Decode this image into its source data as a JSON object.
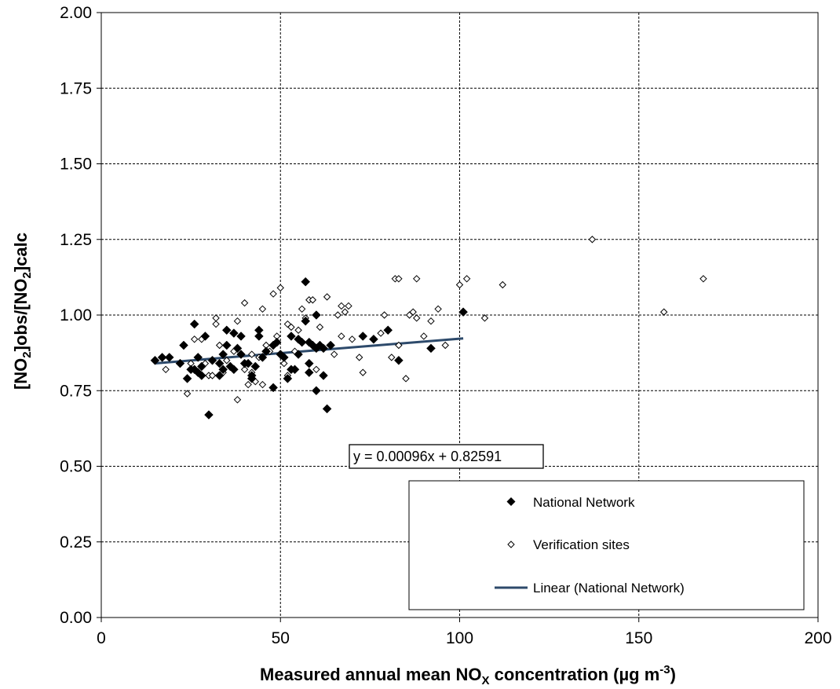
{
  "chart_data": {
    "type": "scatter",
    "xlabel": {
      "main": "Measured annual mean NO",
      "sub": "X",
      "rest": " concentration (µg m",
      "sup": "-3",
      "end": ")"
    },
    "ylabel": {
      "p1": "[NO",
      "s1": "2",
      "p2": "]obs/[NO",
      "s2": "2",
      "p3": "]calc"
    },
    "xlim": [
      0,
      200
    ],
    "ylim": [
      0,
      2.0
    ],
    "x_ticks": [
      "0",
      "50",
      "100",
      "150",
      "200"
    ],
    "y_ticks": [
      "0.00",
      "0.25",
      "0.50",
      "0.75",
      "1.00",
      "1.25",
      "1.50",
      "1.75",
      "2.00"
    ],
    "grid": true,
    "legend_position": "bottom-right",
    "legend": [
      "National Network",
      "Verification sites",
      "Linear (National Network)"
    ],
    "trendline": {
      "series": "National Network",
      "equation": "y = 0.00096x + 0.82591",
      "slope": 0.00096,
      "intercept": 0.82591,
      "x_range": [
        15,
        101
      ],
      "color": "#2d4a6b"
    },
    "series": [
      {
        "name": "National Network",
        "marker": "filled-diamond",
        "color": "#000000",
        "points": [
          [
            15,
            0.85
          ],
          [
            17,
            0.86
          ],
          [
            19,
            0.86
          ],
          [
            22,
            0.84
          ],
          [
            23,
            0.9
          ],
          [
            24,
            0.79
          ],
          [
            25,
            0.82
          ],
          [
            26,
            0.82
          ],
          [
            26,
            0.97
          ],
          [
            27,
            0.86
          ],
          [
            27,
            0.81
          ],
          [
            28,
            0.8
          ],
          [
            28,
            0.83
          ],
          [
            29,
            0.93
          ],
          [
            30,
            0.67
          ],
          [
            31,
            0.85
          ],
          [
            33,
            0.84
          ],
          [
            33,
            0.8
          ],
          [
            34,
            0.87
          ],
          [
            34,
            0.82
          ],
          [
            35,
            0.95
          ],
          [
            35,
            0.9
          ],
          [
            36,
            0.83
          ],
          [
            37,
            0.82
          ],
          [
            37,
            0.94
          ],
          [
            38,
            0.89
          ],
          [
            39,
            0.87
          ],
          [
            39,
            0.93
          ],
          [
            40,
            0.84
          ],
          [
            41,
            0.84
          ],
          [
            42,
            0.8
          ],
          [
            42,
            0.79
          ],
          [
            43,
            0.83
          ],
          [
            44,
            0.95
          ],
          [
            44,
            0.93
          ],
          [
            45,
            0.86
          ],
          [
            46,
            0.88
          ],
          [
            48,
            0.9
          ],
          [
            48,
            0.76
          ],
          [
            49,
            0.91
          ],
          [
            50,
            0.87
          ],
          [
            51,
            0.86
          ],
          [
            52,
            0.79
          ],
          [
            53,
            0.82
          ],
          [
            53,
            0.93
          ],
          [
            54,
            0.82
          ],
          [
            55,
            0.92
          ],
          [
            55,
            0.87
          ],
          [
            56,
            0.91
          ],
          [
            57,
            1.11
          ],
          [
            57,
            0.98
          ],
          [
            58,
            0.81
          ],
          [
            58,
            0.84
          ],
          [
            58,
            0.91
          ],
          [
            59,
            0.9
          ],
          [
            60,
            0.75
          ],
          [
            60,
            0.89
          ],
          [
            61,
            0.9
          ],
          [
            62,
            0.89
          ],
          [
            62,
            0.8
          ],
          [
            63,
            0.69
          ],
          [
            64,
            0.9
          ],
          [
            73,
            0.93
          ],
          [
            76,
            0.92
          ],
          [
            80,
            0.95
          ],
          [
            83,
            0.85
          ],
          [
            92,
            0.89
          ],
          [
            101,
            1.01
          ],
          [
            60,
            1.0
          ]
        ]
      },
      {
        "name": "Verification sites",
        "marker": "open-diamond",
        "color": "#000000",
        "points": [
          [
            18,
            0.82
          ],
          [
            24,
            0.74
          ],
          [
            25,
            0.84
          ],
          [
            26,
            0.92
          ],
          [
            27,
            0.86
          ],
          [
            28,
            0.92
          ],
          [
            29,
            0.84
          ],
          [
            30,
            0.8
          ],
          [
            31,
            0.8
          ],
          [
            32,
            0.99
          ],
          [
            32,
            0.97
          ],
          [
            33,
            0.9
          ],
          [
            34,
            0.81
          ],
          [
            35,
            0.85
          ],
          [
            36,
            0.83
          ],
          [
            37,
            0.88
          ],
          [
            38,
            0.72
          ],
          [
            38,
            0.98
          ],
          [
            39,
            0.87
          ],
          [
            40,
            1.04
          ],
          [
            40,
            0.82
          ],
          [
            41,
            0.77
          ],
          [
            42,
            0.87
          ],
          [
            42,
            0.81
          ],
          [
            43,
            0.78
          ],
          [
            44,
            0.86
          ],
          [
            45,
            0.77
          ],
          [
            45,
            1.02
          ],
          [
            46,
            0.9
          ],
          [
            47,
            0.88
          ],
          [
            48,
            1.07
          ],
          [
            49,
            0.93
          ],
          [
            50,
            1.09
          ],
          [
            51,
            0.84
          ],
          [
            52,
            0.97
          ],
          [
            52,
            0.8
          ],
          [
            53,
            0.96
          ],
          [
            54,
            0.88
          ],
          [
            55,
            0.95
          ],
          [
            56,
            1.02
          ],
          [
            57,
            0.99
          ],
          [
            58,
            1.05
          ],
          [
            59,
            1.05
          ],
          [
            60,
            0.82
          ],
          [
            61,
            0.96
          ],
          [
            63,
            1.06
          ],
          [
            65,
            0.87
          ],
          [
            66,
            1.0
          ],
          [
            67,
            1.03
          ],
          [
            67,
            0.93
          ],
          [
            68,
            1.01
          ],
          [
            69,
            1.03
          ],
          [
            70,
            0.92
          ],
          [
            72,
            0.86
          ],
          [
            73,
            0.81
          ],
          [
            78,
            0.94
          ],
          [
            79,
            1.0
          ],
          [
            81,
            0.86
          ],
          [
            82,
            1.12
          ],
          [
            83,
            1.12
          ],
          [
            83,
            0.9
          ],
          [
            85,
            0.79
          ],
          [
            86,
            1.0
          ],
          [
            87,
            1.01
          ],
          [
            88,
            1.12
          ],
          [
            88,
            0.99
          ],
          [
            90,
            0.93
          ],
          [
            92,
            0.98
          ],
          [
            94,
            1.02
          ],
          [
            96,
            0.9
          ],
          [
            100,
            1.1
          ],
          [
            102,
            1.12
          ],
          [
            107,
            0.99
          ],
          [
            112,
            1.1
          ],
          [
            137,
            1.25
          ],
          [
            157,
            1.01
          ],
          [
            168,
            1.12
          ]
        ]
      }
    ]
  }
}
